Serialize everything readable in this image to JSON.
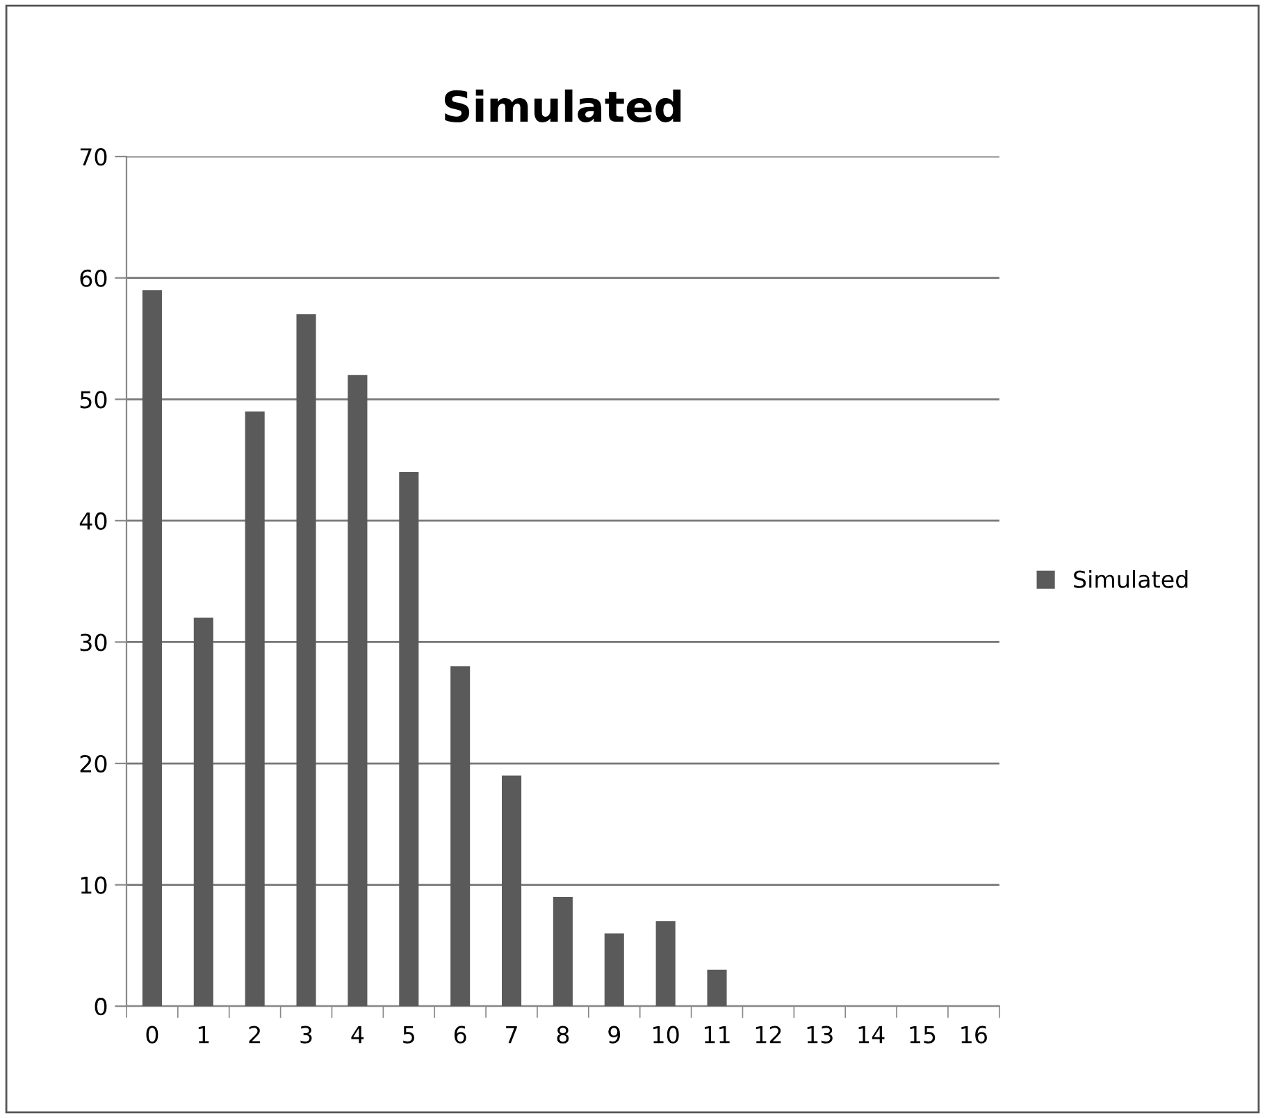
{
  "chart_data": {
    "type": "bar",
    "title": "Simulated",
    "categories": [
      "0",
      "1",
      "2",
      "3",
      "4",
      "5",
      "6",
      "7",
      "8",
      "9",
      "10",
      "11",
      "12",
      "13",
      "14",
      "15",
      "16"
    ],
    "series": [
      {
        "name": "Simulated",
        "color": "#5a5a5a",
        "values": [
          59,
          32,
          49,
          57,
          52,
          44,
          28,
          19,
          9,
          6,
          7,
          3,
          0,
          0,
          0,
          0,
          0
        ]
      }
    ],
    "ylim": [
      0,
      70
    ],
    "yticks": [
      0,
      10,
      20,
      30,
      40,
      50,
      60,
      70
    ],
    "grid": "y",
    "legend": "right"
  }
}
